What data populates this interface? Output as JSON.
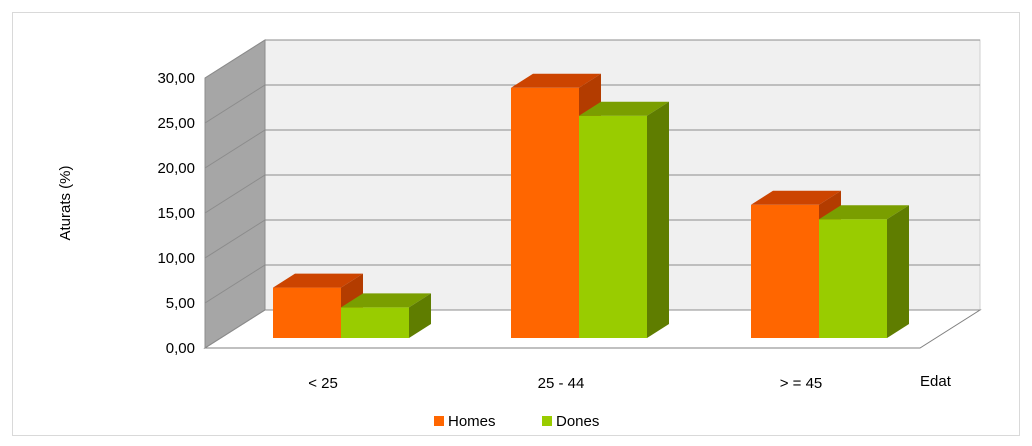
{
  "chart_data": {
    "type": "bar",
    "title": "",
    "xlabel": "Edat",
    "ylabel": "Aturats (%)",
    "categories": [
      "< 25",
      "25 - 44",
      "> = 45"
    ],
    "series": [
      {
        "name": "Homes",
        "values": [
          7.6,
          29.8,
          16.8
        ],
        "color": "#ff6600",
        "top_color": "#cc4400",
        "side_color": "#b33c00"
      },
      {
        "name": "Dones",
        "values": [
          5.4,
          26.7,
          15.2
        ],
        "color": "#99cc00",
        "top_color": "#7a9e00",
        "side_color": "#5f7d00"
      }
    ],
    "ylim": [
      0,
      30
    ],
    "y_ticks": [
      "0,00",
      "5,00",
      "10,00",
      "15,00",
      "20,00",
      "25,00",
      "30,00"
    ],
    "grid": true,
    "legend_position": "bottom-center",
    "wall_color": "#f0f0f0",
    "side_wall_color": "#a6a6a6"
  }
}
